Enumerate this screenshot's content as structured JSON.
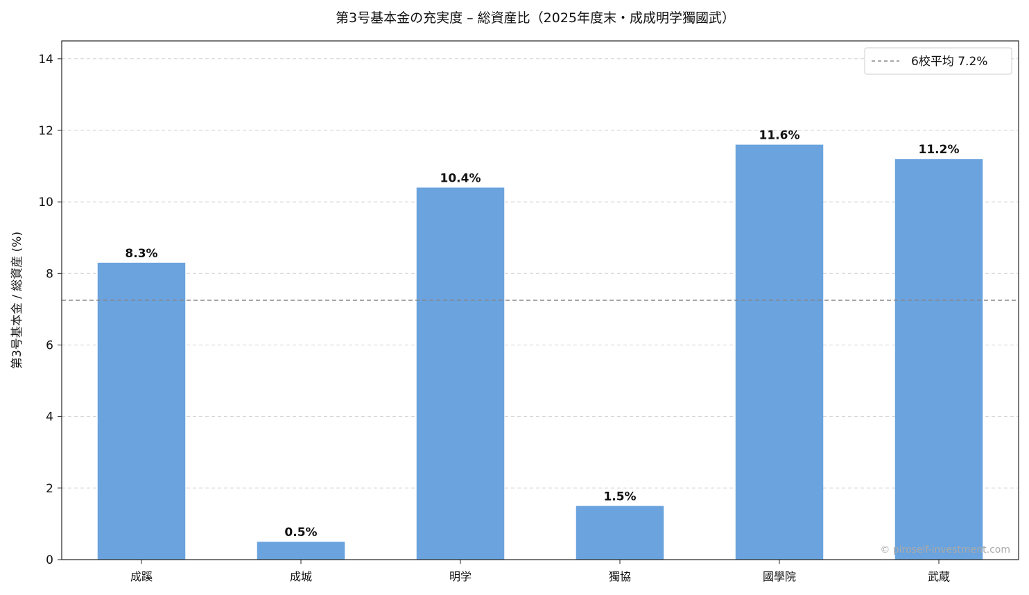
{
  "chart_data": {
    "type": "bar",
    "title": "第3号基本金の充実度 – 総資産比（2025年度末・成成明学獨國武）",
    "xlabel": "",
    "ylabel": "第3号基本金 / 総資産 (%)",
    "categories": [
      "成蹊",
      "成城",
      "明学",
      "獨協",
      "國學院",
      "武蔵"
    ],
    "values": [
      8.3,
      0.5,
      10.4,
      1.5,
      11.6,
      11.2
    ],
    "data_labels": [
      "8.3%",
      "0.5%",
      "10.4%",
      "1.5%",
      "11.6%",
      "11.2%"
    ],
    "ylim": [
      0,
      14.5
    ],
    "yticks": [
      0,
      2,
      4,
      6,
      8,
      10,
      12,
      14
    ],
    "grid": "y-dashed",
    "bar_color": "#6aa3de",
    "average": {
      "value": 7.25,
      "label": "6校平均 7.2%",
      "color": "#888888"
    },
    "legend_position": "top-right",
    "watermark": "© piroself-investment.com"
  }
}
